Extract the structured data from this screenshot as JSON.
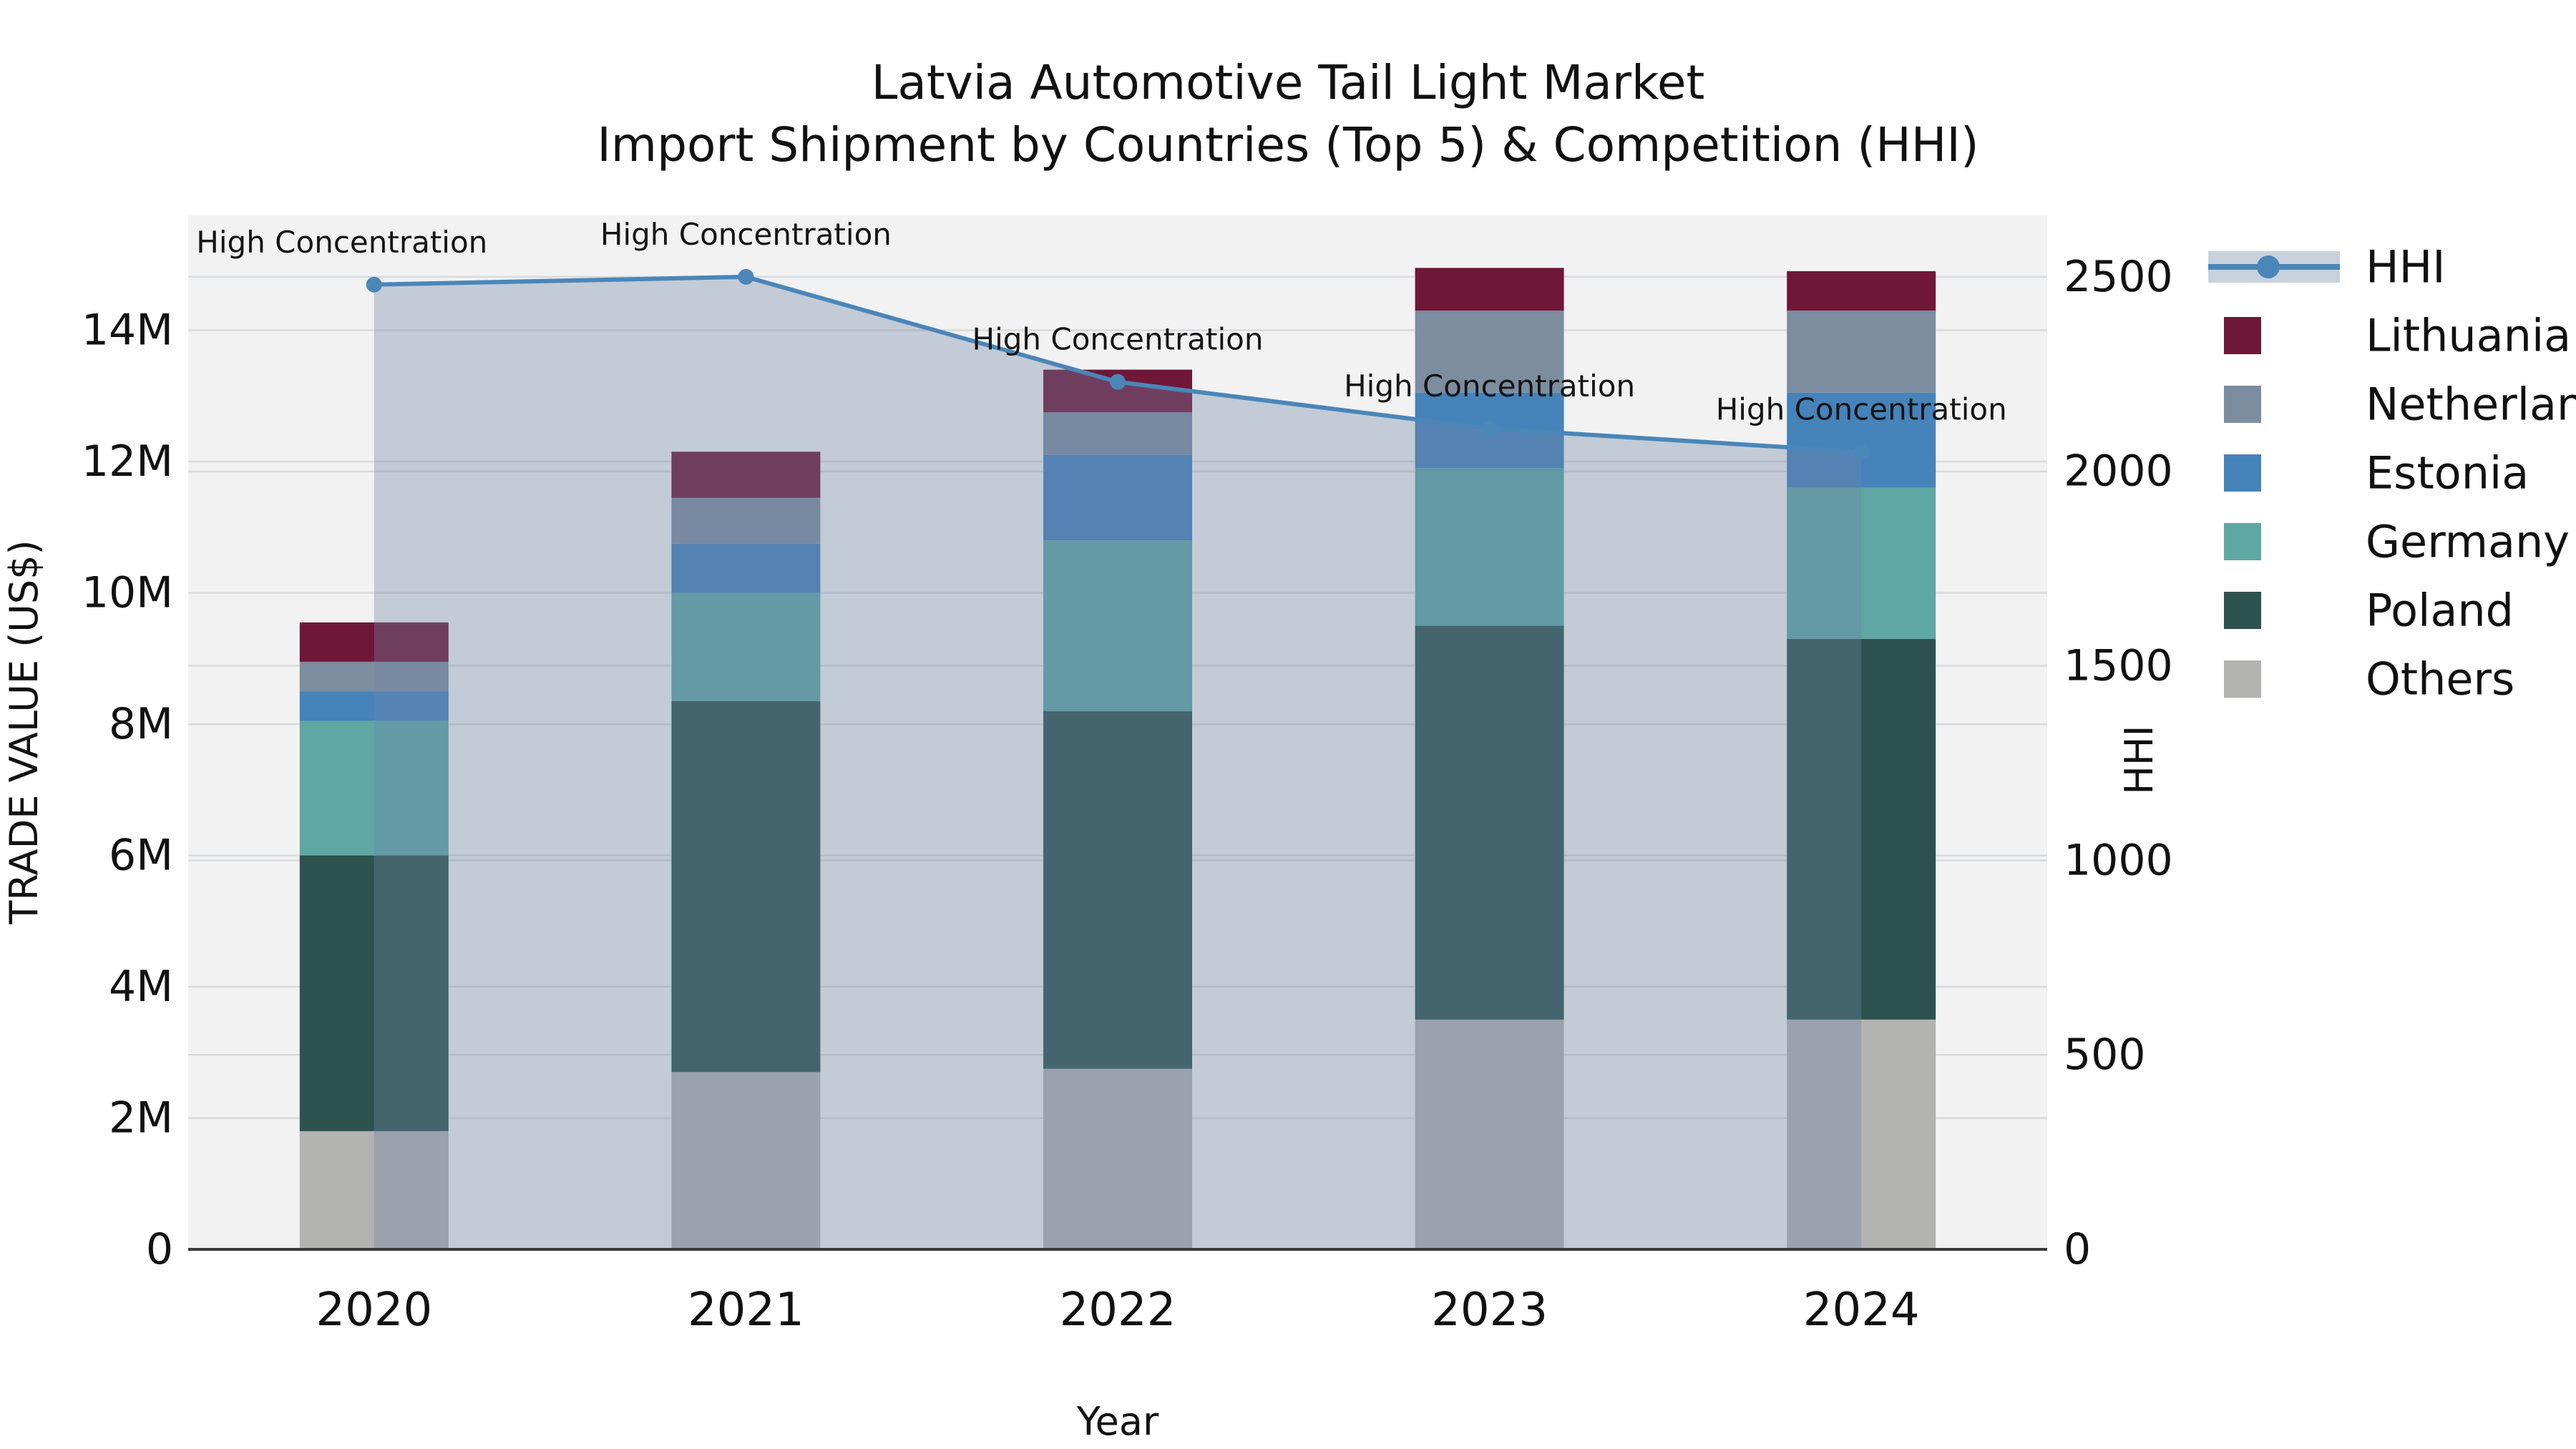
{
  "title": {
    "line1": "Latvia Automotive Tail Light Market",
    "line2": "Import Shipment by Countries (Top 5) & Competition (HHI)"
  },
  "chart_data": {
    "type": "combo-stacked-bar-line",
    "categories": [
      "2020",
      "2021",
      "2022",
      "2023",
      "2024"
    ],
    "bar_value_unit": "millions US$",
    "series": [
      {
        "name": "Others",
        "color": "#b3b3b1",
        "values": [
          1.8,
          2.7,
          2.75,
          3.5,
          3.5
        ]
      },
      {
        "name": "Poland",
        "color": "#2e534f",
        "values": [
          4.2,
          5.65,
          5.45,
          6.0,
          5.8
        ]
      },
      {
        "name": "Germany",
        "color": "#5ea7a4",
        "values": [
          2.05,
          1.65,
          2.6,
          2.4,
          2.3
        ]
      },
      {
        "name": "Estonia",
        "color": "#4583ba",
        "values": [
          0.45,
          0.75,
          1.3,
          1.15,
          1.45
        ]
      },
      {
        "name": "Netherlands",
        "color": "#7c8da0",
        "values": [
          0.45,
          0.7,
          0.65,
          1.25,
          1.25
        ]
      },
      {
        "name": "Lithuania",
        "color": "#6f1737",
        "values": [
          0.6,
          0.7,
          0.65,
          0.65,
          0.6
        ]
      }
    ],
    "bar_totals": [
      9.55,
      12.15,
      13.4,
      14.95,
      14.9
    ],
    "line_series": {
      "name": "HHI",
      "color": "#4a86b8",
      "area_fill_color": "#7086a6",
      "area_fill_opacity": 0.36,
      "values": [
        2480,
        2500,
        2230,
        2110,
        2050
      ]
    },
    "annotations": [
      {
        "text": "High Concentration",
        "dx": -45
      },
      {
        "text": "High Concentration",
        "dx": 0
      },
      {
        "text": "High Concentration",
        "dx": 0
      },
      {
        "text": "High Concentration",
        "dx": 0
      },
      {
        "text": "High Concentration",
        "dx": 0
      }
    ],
    "x_axis": {
      "title": "Year"
    },
    "y_left": {
      "title": "TRADE VALUE (US$)",
      "tick_labels": [
        "0",
        "2M",
        "4M",
        "6M",
        "8M",
        "10M",
        "12M",
        "14M"
      ],
      "tick_values": [
        0,
        2,
        4,
        6,
        8,
        10,
        12,
        14
      ],
      "axis_max": 15.75
    },
    "y_right": {
      "title": "HHI",
      "tick_labels": [
        "0",
        "500",
        "1000",
        "1500",
        "2000",
        "2500"
      ],
      "tick_values": [
        0,
        500,
        1000,
        1500,
        2000,
        2500
      ],
      "axis_max": 2658
    },
    "grid": true,
    "plot_bg_color": "#f2f2f3",
    "grid_color": "#d9dadc",
    "axis_line_color": "#3a3a3a",
    "legend_position": "right"
  },
  "legend": {
    "items": [
      {
        "label": "HHI",
        "type": "line",
        "color": "#4a86b8",
        "band_color": "#c9d1dd"
      },
      {
        "label": "Lithuania",
        "type": "square",
        "color": "#6f1737"
      },
      {
        "label": "Netherlands",
        "type": "square",
        "color": "#7c8da0"
      },
      {
        "label": "Estonia",
        "type": "square",
        "color": "#4583ba"
      },
      {
        "label": "Germany",
        "type": "square",
        "color": "#5ea7a4"
      },
      {
        "label": "Poland",
        "type": "square",
        "color": "#2e534f"
      },
      {
        "label": "Others",
        "type": "square",
        "color": "#b3b3b1"
      }
    ]
  }
}
